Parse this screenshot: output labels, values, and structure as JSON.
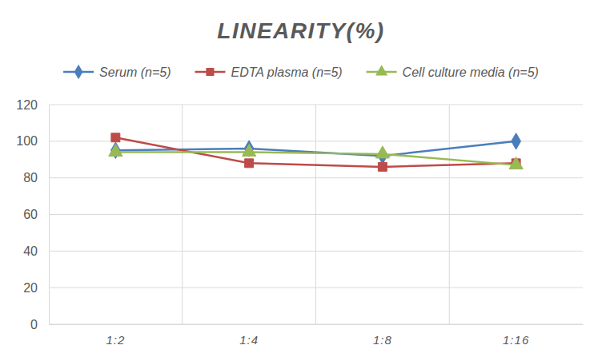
{
  "chart_data": {
    "type": "line",
    "title": "LINEARITY(%)",
    "categories": [
      "1:2",
      "1:4",
      "1:8",
      "1:16"
    ],
    "series": [
      {
        "name": "Serum (n=5)",
        "color": "#4a7ebb",
        "marker": "diamond",
        "values": [
          95,
          96,
          92,
          100
        ]
      },
      {
        "name": "EDTA plasma (n=5)",
        "color": "#be4b48",
        "marker": "square",
        "values": [
          102,
          88,
          86,
          88
        ]
      },
      {
        "name": "Cell culture media (n=5)",
        "color": "#98b954",
        "marker": "triangle",
        "values": [
          94,
          94,
          93,
          87
        ]
      }
    ],
    "ylim": [
      0,
      120
    ],
    "yticks": [
      0,
      20,
      40,
      60,
      80,
      100,
      120
    ],
    "grid": true,
    "legend": "top"
  }
}
